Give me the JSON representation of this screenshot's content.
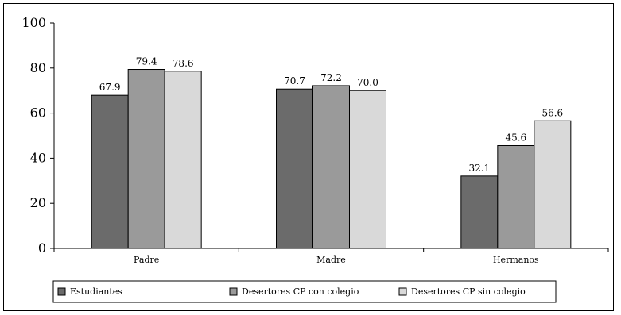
{
  "chart_data": {
    "type": "bar",
    "categories": [
      "Padre",
      "Madre",
      "Hermanos"
    ],
    "series": [
      {
        "name": "Estudiantes",
        "values": [
          67.9,
          70.7,
          32.1
        ],
        "color": "#6b6b6b"
      },
      {
        "name": "Desertores CP con colegio",
        "values": [
          79.4,
          72.2,
          45.6
        ],
        "color": "#9a9a9a"
      },
      {
        "name": "Desertores CP sin colegio",
        "values": [
          78.6,
          70.0,
          56.6
        ],
        "color": "#d9d9d9"
      }
    ],
    "ylim": [
      0,
      100
    ],
    "yticks": [
      0,
      20,
      40,
      60,
      80,
      100
    ],
    "value_labels": [
      [
        "67.9",
        "70.7",
        "32.1"
      ],
      [
        "79.4",
        "72.2",
        "45.6"
      ],
      [
        "78.6",
        "70.0",
        "56.6"
      ]
    ],
    "legend_position": "bottom",
    "grid": false
  }
}
